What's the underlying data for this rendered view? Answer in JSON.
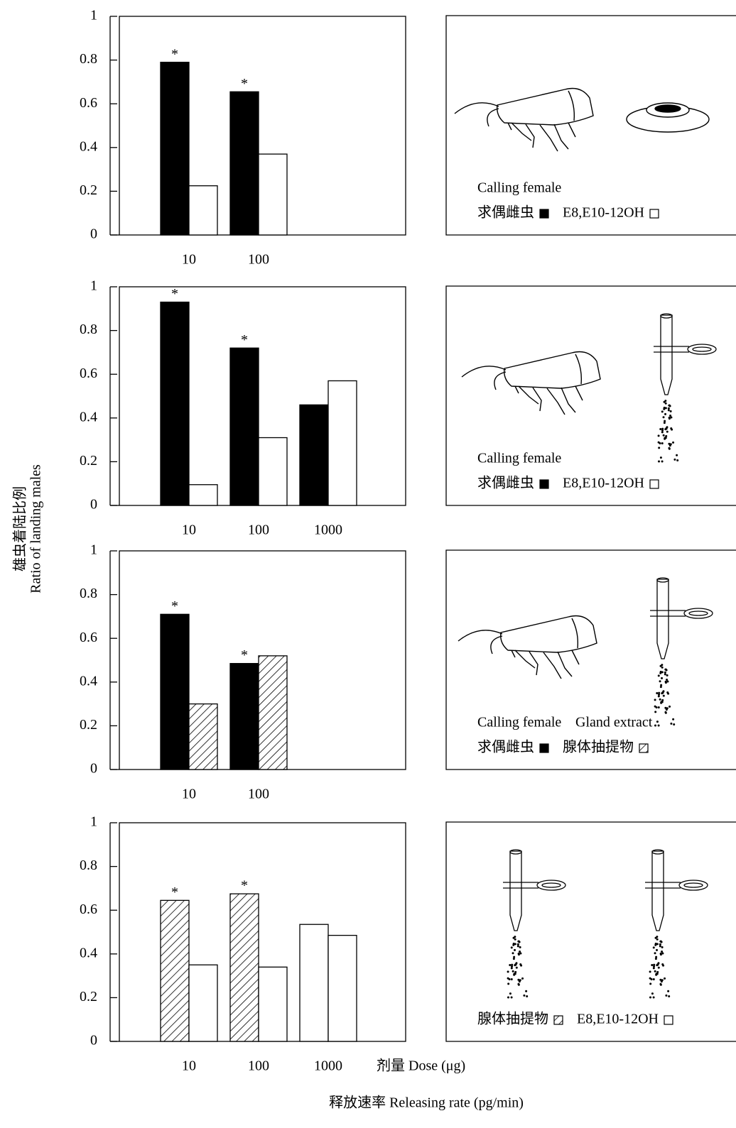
{
  "chart_data": [
    {
      "type": "bar",
      "categories": [
        "10",
        "100"
      ],
      "ylim": [
        0,
        1
      ],
      "yticks": [
        0,
        0.2,
        0.4,
        0.6,
        0.8,
        1
      ],
      "significance_mark": "*",
      "series": [
        {
          "name": "求偶雌虫",
          "name_en": "Calling female",
          "color": "#000000",
          "values": [
            0.79,
            0.655
          ],
          "significant": [
            true,
            true
          ]
        },
        {
          "name": "E8,E10-12OH",
          "color": "#ffffff",
          "values": [
            0.225,
            0.37
          ],
          "significant": [
            false,
            false
          ]
        }
      ]
    },
    {
      "type": "bar",
      "categories": [
        "10",
        "100",
        "1000"
      ],
      "ylim": [
        0,
        1
      ],
      "yticks": [
        0,
        0.2,
        0.4,
        0.6,
        0.8,
        1
      ],
      "significance_mark": "*",
      "ylabel": [
        "雄虫着陆比例",
        "Ratio of landing males"
      ],
      "series": [
        {
          "name": "求偶雌虫",
          "name_en": "Calling female",
          "color": "#000000",
          "values": [
            0.93,
            0.72,
            0.46
          ],
          "significant": [
            true,
            true,
            false
          ]
        },
        {
          "name": "E8,E10-12OH",
          "color": "#ffffff",
          "values": [
            0.095,
            0.31,
            0.57
          ],
          "significant": [
            false,
            false,
            false
          ]
        }
      ]
    },
    {
      "type": "bar",
      "categories": [
        "10",
        "100"
      ],
      "ylim": [
        0,
        1
      ],
      "yticks": [
        0,
        0.2,
        0.4,
        0.6,
        0.8,
        1
      ],
      "significance_mark": "*",
      "series": [
        {
          "name": "求偶雌虫",
          "name_en": "Calling female",
          "color": "#000000",
          "values": [
            0.71,
            0.485
          ],
          "significant": [
            true,
            true
          ]
        },
        {
          "name": "腺体抽提物",
          "name_en": "Gland extract",
          "color": "#ffffff",
          "hatched": true,
          "values": [
            0.3,
            0.52
          ],
          "significant": [
            false,
            false
          ]
        }
      ]
    },
    {
      "type": "bar",
      "categories": [
        "10",
        "100",
        "1000"
      ],
      "ylim": [
        0,
        1
      ],
      "yticks": [
        0,
        0.2,
        0.4,
        0.6,
        0.8,
        1
      ],
      "significance_mark": "*",
      "xlabel": "释放速率 Releasing rate (pg/min)",
      "xlabel_dose": "剂量  Dose (μg)",
      "series": [
        {
          "name": "腺体抽提物",
          "color": "#ffffff",
          "hatched": [
            true,
            true,
            false
          ],
          "values": [
            0.645,
            0.675,
            0.535
          ],
          "significant": [
            true,
            true,
            false
          ]
        },
        {
          "name": "E8,E10-12OH",
          "color": "#ffffff",
          "values": [
            0.35,
            0.34,
            0.485
          ],
          "significant": [
            false,
            false,
            false
          ]
        }
      ]
    }
  ]
}
